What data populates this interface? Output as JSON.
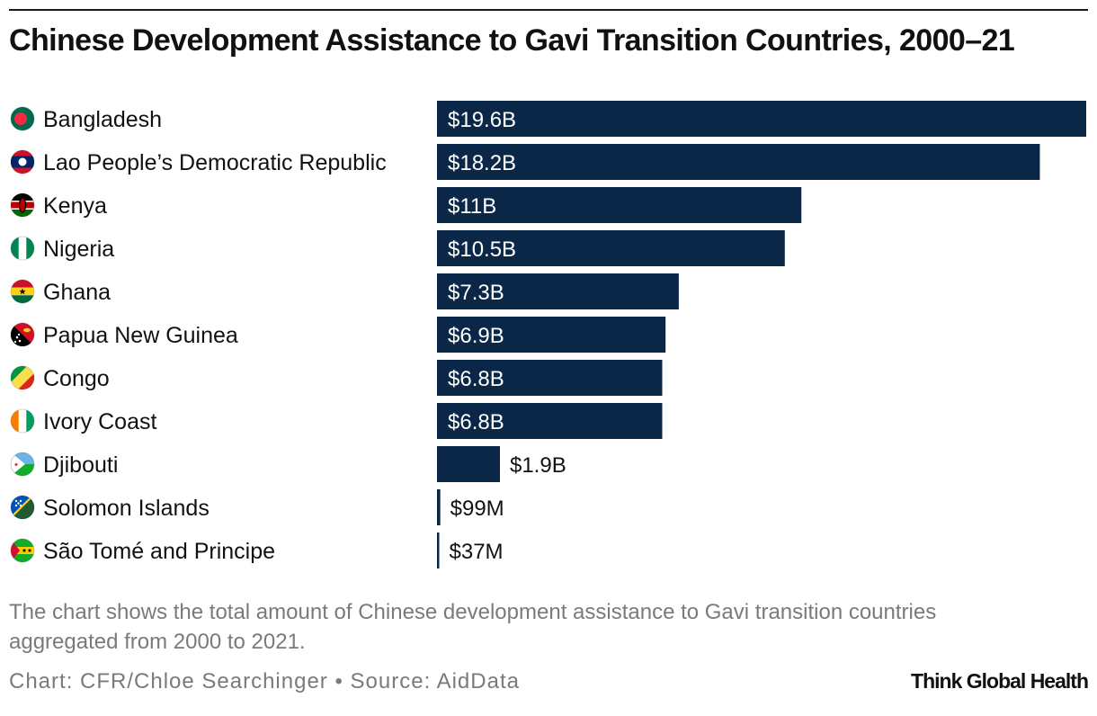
{
  "header": {
    "title": "Chinese Development Assistance to Gavi Transition Countries, 2000–21"
  },
  "chart_data": {
    "type": "bar",
    "orientation": "horizontal",
    "title": "Chinese Development Assistance to Gavi Transition Countries, 2000–21",
    "unit": "USD billions",
    "categories": [
      "Bangladesh",
      "Lao People’s Democratic Republic",
      "Kenya",
      "Nigeria",
      "Ghana",
      "Papua New Guinea",
      "Congo",
      "Ivory Coast",
      "Djibouti",
      "Solomon Islands",
      "São Tomé and Principe"
    ],
    "values": [
      19.6,
      18.2,
      11,
      10.5,
      7.3,
      6.9,
      6.8,
      6.8,
      1.9,
      0.099,
      0.037
    ],
    "value_labels": [
      "$19.6B",
      "$18.2B",
      "$11B",
      "$10.5B",
      "$7.3B",
      "$6.9B",
      "$6.8B",
      "$6.8B",
      "$1.9B",
      "$99M",
      "$37M"
    ],
    "xlim": [
      0,
      19.6
    ],
    "grid": false,
    "legend": "none",
    "colors": {
      "bar": "#0b2747",
      "label_inside": "#ffffff",
      "label_outside": "#111111"
    }
  },
  "flag_icons": [
    "bangladesh-flag-icon",
    "laos-flag-icon",
    "kenya-flag-icon",
    "nigeria-flag-icon",
    "ghana-flag-icon",
    "papua-new-guinea-flag-icon",
    "congo-flag-icon",
    "ivory-coast-flag-icon",
    "djibouti-flag-icon",
    "solomon-islands-flag-icon",
    "sao-tome-flag-icon"
  ],
  "footer": {
    "caption": "The chart shows the total amount of Chinese development assistance to Gavi transition countries aggregated from 2000 to 2021.",
    "credit": "Chart: CFR/Chloe Searchinger • Source: AidData",
    "brand": "Think Global Health"
  }
}
